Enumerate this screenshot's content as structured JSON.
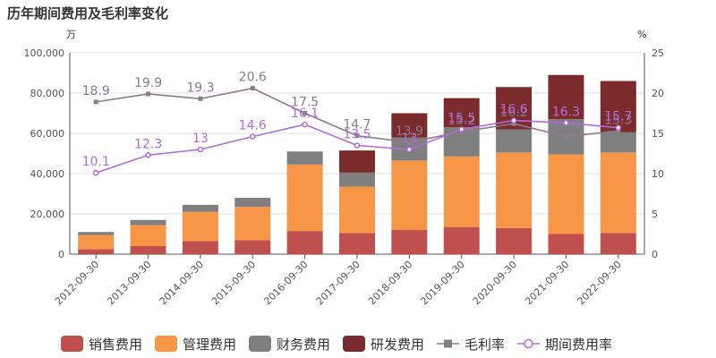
{
  "title": "历年期间费用及毛利率变化",
  "chart_data": {
    "type": "bar",
    "stacked": true,
    "title": "历年期间费用及毛利率变化",
    "left_axis_unit": "万",
    "right_axis_unit": "%",
    "ylim_left": [
      0,
      100000
    ],
    "yticks_left": [
      0,
      20000,
      40000,
      60000,
      80000,
      100000
    ],
    "ytick_labels_left": [
      "0",
      "20,000",
      "40,000",
      "60,000",
      "80,000",
      "100,000"
    ],
    "ylim_right": [
      0,
      25
    ],
    "yticks_right": [
      0,
      5,
      10,
      15,
      20,
      25
    ],
    "categories": [
      "2012-09-30",
      "2013-09-30",
      "2014-09-30",
      "2015-09-30",
      "2016-09-30",
      "2017-09-30",
      "2018-09-30",
      "2019-09-30",
      "2020-09-30",
      "2021-09-30",
      "2022-09-30"
    ],
    "series": [
      {
        "name": "销售费用",
        "type": "bar",
        "axis": "left",
        "color": "#c0504d",
        "values": [
          2500,
          4000,
          6500,
          7000,
          11500,
          10500,
          12000,
          13500,
          13000,
          10000,
          10500
        ]
      },
      {
        "name": "管理费用",
        "type": "bar",
        "axis": "left",
        "color": "#f79646",
        "values": [
          7000,
          10500,
          14500,
          16500,
          33000,
          23000,
          34500,
          35000,
          37500,
          39500,
          40000
        ]
      },
      {
        "name": "财务费用",
        "type": "bar",
        "axis": "left",
        "color": "#7f7f7f",
        "values": [
          1500,
          2500,
          3500,
          4500,
          6500,
          7000,
          11500,
          14500,
          11500,
          17500,
          10000
        ]
      },
      {
        "name": "研发费用",
        "type": "bar",
        "axis": "left",
        "color": "#7b2b2b",
        "values": [
          0,
          0,
          0,
          0,
          0,
          11000,
          12000,
          14500,
          21000,
          22000,
          25500
        ]
      },
      {
        "name": "毛利率",
        "type": "line",
        "axis": "right",
        "color": "#8c7b8c",
        "marker": "square",
        "values": [
          18.9,
          19.9,
          19.3,
          20.6,
          17.5,
          14.7,
          13.9,
          15.2,
          16.2,
          14.6,
          15.3
        ],
        "labels": [
          "18.9",
          "19.9",
          "19.3",
          "20.6",
          "17.5",
          "14.7",
          "13.9",
          "15.2",
          "16.2",
          "14.6",
          "15.3"
        ]
      },
      {
        "name": "期间费用率",
        "type": "line",
        "axis": "right",
        "color": "#b36bdc",
        "marker": "circle",
        "values": [
          10.1,
          12.3,
          13,
          14.6,
          16.1,
          13.5,
          13,
          15.5,
          16.6,
          16.3,
          15.7
        ],
        "labels": [
          "10.1",
          "12.3",
          "13",
          "14.6",
          "16.1",
          "13.5",
          "13",
          "15.5",
          "16.6",
          "16.3",
          "15.7"
        ]
      }
    ],
    "legend_position": "bottom"
  }
}
